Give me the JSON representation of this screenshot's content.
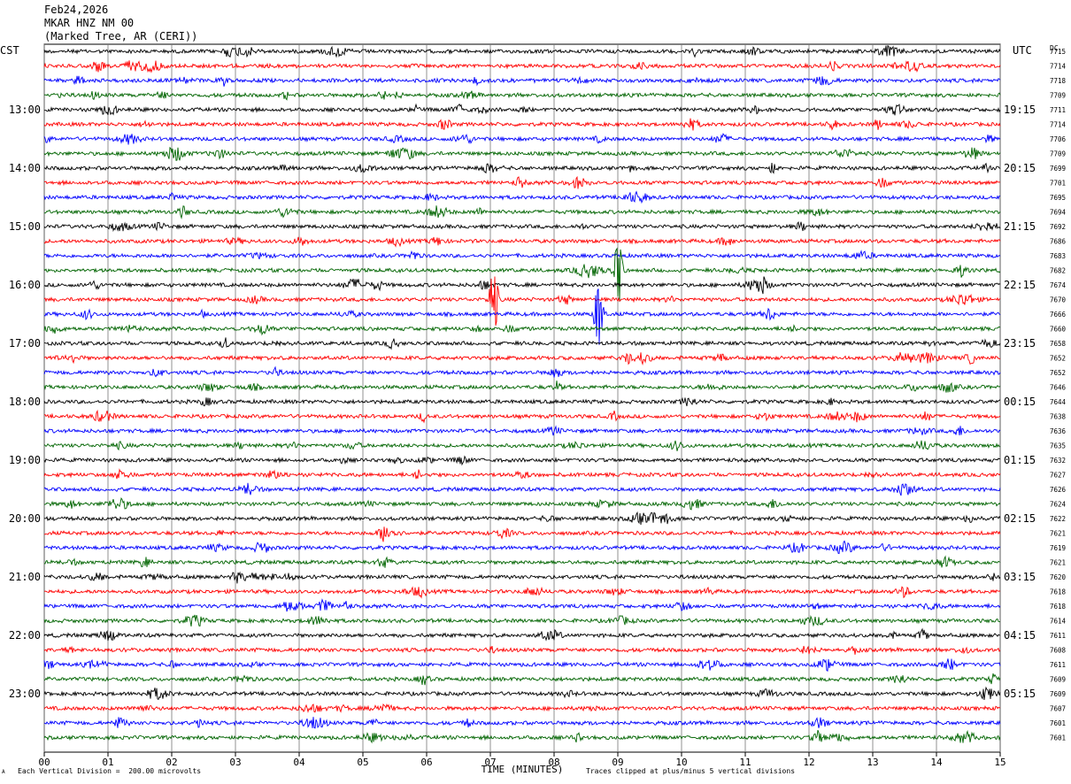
{
  "header": {
    "date": "Feb24,2026",
    "station": "MKAR HNZ NM 00",
    "location": "(Marked Tree, AR (CERI))"
  },
  "left_tz": "CST",
  "right_tz": "UTC",
  "dc_label": "DC",
  "footer": {
    "scale_note": "Each Vertical Division =  200.00 microvolts",
    "clip_note": "Traces clipped at plus/minus 5 vertical divisions",
    "corner_mark": "A"
  },
  "chart_data": {
    "type": "line",
    "title": "",
    "xlabel": "TIME (MINUTES)",
    "xlim": [
      0,
      15
    ],
    "x_ticks": [
      "00",
      "01",
      "02",
      "03",
      "04",
      "05",
      "06",
      "07",
      "08",
      "09",
      "10",
      "11",
      "12",
      "13",
      "14",
      "15"
    ],
    "trace_colors": [
      "#000000",
      "#ff0000",
      "#0000ff",
      "#006400"
    ],
    "trace_count": 48,
    "left_hour_labels": [
      "13:00",
      "14:00",
      "15:00",
      "16:00",
      "17:00",
      "18:00",
      "19:00",
      "20:00",
      "21:00",
      "22:00",
      "23:00"
    ],
    "right_hour_labels": [
      "19:15",
      "20:15",
      "21:15",
      "22:15",
      "23:15",
      "00:15",
      "01:15",
      "02:15",
      "03:15",
      "04:15",
      "05:15"
    ],
    "dc_offsets": [
      "7715",
      "7714",
      "7718",
      "7709",
      "7711",
      "7714",
      "7706",
      "7709",
      "7699",
      "7701",
      "7695",
      "7694",
      "7692",
      "7686",
      "7683",
      "7682",
      "7674",
      "7670",
      "7666",
      "7660",
      "7658",
      "7652",
      "7652",
      "7646",
      "7644",
      "7638",
      "7636",
      "7635",
      "7632",
      "7627",
      "7626",
      "7624",
      "7622",
      "7621",
      "7619",
      "7621",
      "7620",
      "7618",
      "7618",
      "7614",
      "7611",
      "7608",
      "7611",
      "7609",
      "7609",
      "7607",
      "7601",
      "7601"
    ],
    "events": [
      {
        "trace": 17,
        "minute": 7.05,
        "amplitude": "clipped"
      },
      {
        "trace": 18,
        "minute": 8.7,
        "amplitude": "clipped"
      },
      {
        "trace": 15,
        "minute": 9.0,
        "amplitude": "clipped"
      }
    ]
  }
}
